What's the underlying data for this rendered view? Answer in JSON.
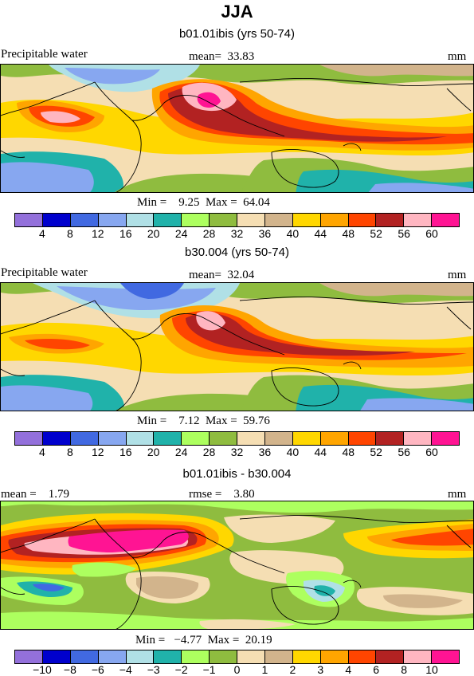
{
  "title": "JJA",
  "panels": [
    {
      "subtitle": "b01.01ibis (yrs 50-74)",
      "left_label": "Precipitable water",
      "center_label": "mean=  33.83",
      "right_label": "mm",
      "minmax": "Min =    9.25  Max =  64.04",
      "colors": [
        "#9370db",
        "#0000cd",
        "#4169e1",
        "#87a7f0",
        "#b0e0e6",
        "#20b2aa",
        "#adff5f",
        "#8fbc3f",
        "#f5deb3",
        "#d2b48c",
        "#ffd700",
        "#ffa500",
        "#ff4500",
        "#b22222",
        "#ffb6c1",
        "#ff1493"
      ],
      "ticks": [
        "4",
        "8",
        "12",
        "16",
        "20",
        "24",
        "28",
        "32",
        "36",
        "40",
        "44",
        "48",
        "52",
        "56",
        "60"
      ]
    },
    {
      "subtitle": "b30.004 (yrs 50-74)",
      "left_label": "Precipitable water",
      "center_label": "mean=  32.04",
      "right_label": "mm",
      "minmax": "Min =    7.12  Max =  59.76",
      "colors": [
        "#9370db",
        "#0000cd",
        "#4169e1",
        "#87a7f0",
        "#b0e0e6",
        "#20b2aa",
        "#adff5f",
        "#8fbc3f",
        "#f5deb3",
        "#d2b48c",
        "#ffd700",
        "#ffa500",
        "#ff4500",
        "#b22222",
        "#ffb6c1",
        "#ff1493"
      ],
      "ticks": [
        "4",
        "8",
        "12",
        "16",
        "20",
        "24",
        "28",
        "32",
        "36",
        "40",
        "44",
        "48",
        "52",
        "56",
        "60"
      ]
    },
    {
      "subtitle": "b01.01ibis - b30.004",
      "left_label": "mean =    1.79",
      "center_label": "rmse =    3.80",
      "right_label": "mm",
      "minmax": "Min =   −4.77  Max =  20.19",
      "colors": [
        "#9370db",
        "#0000cd",
        "#4169e1",
        "#87a7f0",
        "#b0e0e6",
        "#20b2aa",
        "#adff5f",
        "#8fbc3f",
        "#f5deb3",
        "#d2b48c",
        "#ffd700",
        "#ffa500",
        "#ff4500",
        "#b22222",
        "#ffb6c1",
        "#ff1493"
      ],
      "ticks": [
        "−10",
        "−8",
        "−6",
        "−4",
        "−3",
        "−2",
        "−1",
        "0",
        "1",
        "2",
        "3",
        "4",
        "6",
        "8",
        "10"
      ]
    }
  ]
}
